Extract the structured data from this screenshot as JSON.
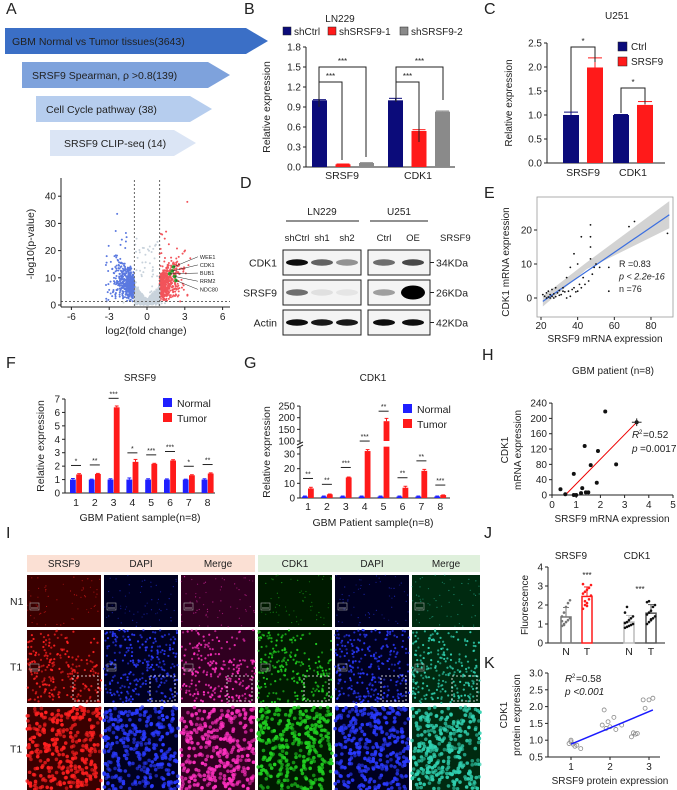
{
  "panel_labels": [
    "A",
    "B",
    "C",
    "D",
    "E",
    "F",
    "G",
    "H",
    "I",
    "J",
    "K"
  ],
  "chart_data": [
    {
      "panel": "A",
      "type": "funnel",
      "steps": [
        {
          "label": "GBM Normal vs Tumor tissues(3643)",
          "color": "#3b6fc6"
        },
        {
          "label": "SRSF9 Spearman, ρ >0.8(139)",
          "color": "#7ea2dc"
        },
        {
          "label": "Cell Cycle pathway (38)",
          "color": "#b6cdee"
        },
        {
          "label": "SRSF9 CLIP-seq (14)",
          "color": "#dbe5f5"
        }
      ]
    },
    {
      "panel": "A-volcano",
      "type": "scatter",
      "xlabel": "log2(fold change)",
      "ylabel": "-log10(p-value)",
      "xlim": [
        -7,
        7
      ],
      "ylim": [
        0,
        45
      ],
      "xticks": [
        "-6",
        "-3",
        "0",
        "3",
        "6"
      ],
      "yticks": [
        "0",
        "10",
        "20",
        "30",
        "40"
      ],
      "thresholds": {
        "log2fc": 1,
        "neglog10p": 1.3
      },
      "colors": {
        "down": "#5b79e0",
        "up": "#f2545b",
        "ns": "#c9d3dc",
        "highlight": "#2ca02c"
      },
      "highlighted_genes": [
        {
          "name": "WEE1",
          "x": 2.1,
          "y": 14
        },
        {
          "name": "CDK1",
          "x": 2.0,
          "y": 12.5
        },
        {
          "name": "BUB1",
          "x": 1.8,
          "y": 11.5
        },
        {
          "name": "RRM2",
          "x": 2.2,
          "y": 10.5
        },
        {
          "name": "NDC80",
          "x": 2.3,
          "y": 9
        }
      ]
    },
    {
      "panel": "B",
      "type": "bar",
      "title": "LN229",
      "ylabel": "Relative expression",
      "ylim": [
        0,
        1.8
      ],
      "yticks": [
        "0.0",
        "0.3",
        "0.6",
        "0.9",
        "1.2",
        "1.5",
        "1.8"
      ],
      "categories": [
        "SRSF9",
        "CDK1"
      ],
      "series": [
        {
          "name": "shCtrl",
          "color": "#0b0b7a",
          "values": [
            1.0,
            1.0
          ],
          "errors": [
            0.01,
            0.03
          ]
        },
        {
          "name": "shSRSF9-1",
          "color": "#ff1a1a",
          "values": [
            0.04,
            0.54
          ],
          "errors": [
            0.005,
            0.02
          ]
        },
        {
          "name": "shSRSF9-2",
          "color": "#8a8a8a",
          "values": [
            0.06,
            0.83
          ],
          "errors": [
            0.005,
            0.01
          ]
        }
      ],
      "significance": [
        "***",
        "***",
        "***",
        "***"
      ]
    },
    {
      "panel": "C",
      "type": "bar",
      "title": "U251",
      "ylabel": "Relative expression",
      "ylim": [
        0,
        2.5
      ],
      "yticks": [
        "0.0",
        "0.5",
        "1.0",
        "1.5",
        "2.0",
        "2.5"
      ],
      "categories": [
        "SRSF9",
        "CDK1"
      ],
      "series": [
        {
          "name": "Ctrl",
          "color": "#0b0b7a",
          "values": [
            1.0,
            1.0
          ],
          "errors": [
            0.06,
            0.01
          ]
        },
        {
          "name": "SRSF9",
          "color": "#ff1a1a",
          "values": [
            1.99,
            1.21
          ],
          "errors": [
            0.2,
            0.07
          ]
        }
      ],
      "significance": [
        "*",
        "*"
      ]
    },
    {
      "panel": "D",
      "type": "western-blot",
      "groups": [
        "LN229",
        "U251"
      ],
      "lanes": [
        "shCtrl",
        "sh1",
        "sh2",
        "Ctrl",
        "OE"
      ],
      "lane_axis_label": "SRSF9",
      "rows": [
        {
          "protein": "CDK1",
          "size": "34KDa",
          "intensity": [
            0.95,
            0.6,
            0.4,
            0.55,
            0.7
          ]
        },
        {
          "protein": "SRSF9",
          "size": "26KDa",
          "intensity": [
            0.55,
            0.08,
            0.06,
            0.35,
            1.0
          ]
        },
        {
          "protein": "Actin",
          "size": "42KDa",
          "intensity": [
            0.95,
            0.9,
            0.9,
            0.95,
            0.95
          ]
        }
      ]
    },
    {
      "panel": "E",
      "type": "scatter",
      "xlabel": "SRSF9 mRNA expression",
      "ylabel": "CDK1 mRNA expression",
      "xlim": [
        18,
        92
      ],
      "ylim": [
        -3,
        27
      ],
      "xticks": [
        "20",
        "40",
        "60",
        "80"
      ],
      "yticks": [
        "0",
        "10",
        "20"
      ],
      "stats": [
        "R =0.83",
        "p < 2.2e-16",
        "n =76"
      ],
      "fit": {
        "x": [
          21,
          90
        ],
        "y": [
          -1,
          24.5
        ]
      },
      "points": [
        [
          21,
          1
        ],
        [
          22,
          0.5
        ],
        [
          23,
          0
        ],
        [
          23,
          1.5
        ],
        [
          24,
          2
        ],
        [
          24,
          0.3
        ],
        [
          25,
          1
        ],
        [
          25,
          0
        ],
        [
          26,
          0.5
        ],
        [
          26,
          2.5
        ],
        [
          27,
          0
        ],
        [
          27,
          1.2
        ],
        [
          28,
          3
        ],
        [
          28,
          0.4
        ],
        [
          29,
          1.5
        ],
        [
          30,
          0.8
        ],
        [
          30,
          2.2
        ],
        [
          31,
          1
        ],
        [
          32,
          3
        ],
        [
          32,
          2
        ],
        [
          33,
          1.8
        ],
        [
          34,
          6
        ],
        [
          34,
          0
        ],
        [
          35,
          2
        ],
        [
          36,
          9
        ],
        [
          36,
          0.5
        ],
        [
          37,
          2.5
        ],
        [
          38,
          13
        ],
        [
          38,
          3
        ],
        [
          39,
          1.8
        ],
        [
          40,
          10
        ],
        [
          40,
          2
        ],
        [
          41,
          4
        ],
        [
          42,
          18
        ],
        [
          42,
          3
        ],
        [
          43,
          6
        ],
        [
          44,
          4
        ],
        [
          46,
          5
        ],
        [
          47,
          21.5
        ],
        [
          47,
          18
        ],
        [
          47,
          15
        ],
        [
          47,
          11.5
        ],
        [
          48,
          7
        ],
        [
          49,
          9
        ],
        [
          50,
          10
        ],
        [
          52,
          9
        ],
        [
          57,
          2
        ],
        [
          57,
          9
        ],
        [
          68,
          21
        ],
        [
          71,
          22.5
        ],
        [
          89,
          19
        ]
      ]
    },
    {
      "panel": "F",
      "type": "bar",
      "title": "SRSF9",
      "xlabel": "GBM Patient sample(n=8)",
      "ylabel": "Relative expression",
      "ylim": [
        0,
        7
      ],
      "yticks": [
        "0",
        "1",
        "2",
        "3",
        "4",
        "5",
        "6",
        "7"
      ],
      "categories": [
        "1",
        "2",
        "3",
        "4",
        "5",
        "6",
        "7",
        "8"
      ],
      "series": [
        {
          "name": "Normal",
          "color": "#1f1fff",
          "values": [
            1,
            1,
            1,
            1,
            1,
            1,
            1,
            1
          ],
          "errors": [
            0.08,
            0.03,
            0.06,
            0.12,
            0.06,
            0.05,
            0.03,
            0.06
          ]
        },
        {
          "name": "Tumor",
          "color": "#ff1a1a",
          "values": [
            1.38,
            1.42,
            6.38,
            2.32,
            2.17,
            2.42,
            1.32,
            1.45
          ],
          "errors": [
            0.06,
            0.04,
            0.1,
            0.18,
            0.04,
            0.06,
            0.04,
            0.05
          ]
        }
      ],
      "significance": [
        "*",
        "**",
        "***",
        "*",
        "***",
        "***",
        "*",
        "**"
      ]
    },
    {
      "panel": "G",
      "type": "bar",
      "title": "CDK1",
      "xlabel": "GBM Patient sample(n=8)",
      "ylabel": "Relative expression",
      "axis_break": [
        35,
        100
      ],
      "ylim": [
        0,
        250
      ],
      "yticks": [
        "0",
        "10",
        "20",
        "30",
        "100",
        "150",
        "200",
        "250"
      ],
      "categories": [
        "1",
        "2",
        "3",
        "4",
        "5",
        "6",
        "7",
        "8"
      ],
      "series": [
        {
          "name": "Normal",
          "color": "#1f1fff",
          "values": [
            1,
            1,
            1,
            1,
            1,
            1,
            1,
            1
          ],
          "errors": [
            0.1,
            0.1,
            0.1,
            0.1,
            0.1,
            0.1,
            0.1,
            0.1
          ]
        },
        {
          "name": "Tumor",
          "color": "#ff1a1a",
          "values": [
            6.5,
            2.5,
            14,
            32,
            185,
            7,
            18.5,
            2
          ],
          "errors": [
            0.8,
            0.2,
            0.3,
            1,
            12,
            1,
            1,
            0.1
          ]
        }
      ],
      "significance": [
        "**",
        "**",
        "***",
        "***",
        "**",
        "**",
        "**",
        "***"
      ]
    },
    {
      "panel": "H",
      "type": "scatter",
      "title": "GBM patient (n=8)",
      "xlabel": "SRSF9 mRNA expression",
      "ylabel_lines": [
        "CDK1",
        "mRNA expression"
      ],
      "xlim": [
        0,
        5
      ],
      "ylim": [
        0,
        240
      ],
      "xticks": [
        "0",
        "1",
        "2",
        "3",
        "4",
        "5"
      ],
      "yticks": [
        "0",
        "40",
        "80",
        "120",
        "160",
        "200",
        "240"
      ],
      "stats": {
        "r2": "=0.52",
        "p": "=0.0017"
      },
      "fit": {
        "x": [
          0.55,
          3.5
        ],
        "y": [
          0,
          190
        ]
      },
      "points": [
        [
          0.35,
          15
        ],
        [
          0.55,
          2
        ],
        [
          0.9,
          55
        ],
        [
          0.9,
          0
        ],
        [
          1.0,
          0
        ],
        [
          1.2,
          5
        ],
        [
          1.25,
          18
        ],
        [
          1.35,
          128
        ],
        [
          1.4,
          7
        ],
        [
          1.5,
          7
        ],
        [
          1.6,
          78
        ],
        [
          1.85,
          32
        ],
        [
          1.9,
          115
        ],
        [
          2.2,
          218
        ],
        [
          2.65,
          80
        ],
        [
          3.5,
          190
        ]
      ]
    },
    {
      "panel": "I",
      "type": "image-grid",
      "columns": [
        "SRSF9",
        "DAPI",
        "Merge",
        "CDK1",
        "DAPI",
        "Merge"
      ],
      "rows": [
        "N1",
        "T1",
        "T1"
      ]
    },
    {
      "panel": "J",
      "type": "bar",
      "ylabel": "Fluorescence",
      "ylim": [
        0,
        4
      ],
      "yticks": [
        "0",
        "1",
        "2",
        "3",
        "4"
      ],
      "groups": [
        "SRSF9",
        "CDK1"
      ],
      "categories": [
        "N",
        "T",
        "N",
        "T"
      ],
      "values": [
        1.37,
        2.45,
        1.1,
        1.57
      ],
      "errors": [
        0.5,
        0.5,
        0.35,
        0.45
      ],
      "colors": [
        "#777777",
        "#ff1a1a",
        "#bbbbbb",
        "#555555"
      ],
      "significance": [
        "***",
        "***"
      ],
      "points": [
        [
          0.9,
          1.0,
          1.1,
          1.2,
          1.3,
          1.4,
          1.6,
          1.9,
          2.1,
          2.25,
          1.15,
          0.95
        ],
        [
          1.8,
          2.0,
          2.1,
          2.3,
          2.5,
          2.6,
          2.7,
          2.8,
          2.9,
          3.05,
          3.1,
          2.2,
          1.95
        ],
        [
          0.8,
          0.85,
          0.9,
          0.95,
          1.0,
          1.05,
          1.1,
          1.2,
          1.3,
          1.4,
          1.6,
          1.9
        ],
        [
          1.0,
          1.1,
          1.2,
          1.3,
          1.4,
          1.5,
          1.6,
          1.7,
          1.9,
          2.0,
          2.15,
          2.2,
          1.25
        ]
      ]
    },
    {
      "panel": "K",
      "type": "scatter",
      "xlabel": "SRSF9 protein expression",
      "ylabel_lines": [
        "CDK1",
        "protein expression"
      ],
      "xlim": [
        0.7,
        3.3
      ],
      "ylim": [
        0.5,
        3.0
      ],
      "xticks": [
        "1",
        "2",
        "3"
      ],
      "yticks": [
        "0.5",
        "1.0",
        "1.5",
        "2.0",
        "2.5",
        "3.0"
      ],
      "stats": {
        "r2": "=0.58",
        "p": "p <0.001"
      },
      "fit": {
        "x": [
          1.0,
          3.1
        ],
        "y": [
          0.88,
          1.9
        ]
      },
      "points": [
        [
          0.95,
          0.9
        ],
        [
          1.0,
          0.95
        ],
        [
          1.0,
          1.0
        ],
        [
          1.05,
          0.88
        ],
        [
          1.1,
          0.82
        ],
        [
          1.15,
          0.85
        ],
        [
          1.25,
          0.75
        ],
        [
          1.8,
          1.45
        ],
        [
          1.85,
          1.9
        ],
        [
          1.9,
          1.35
        ],
        [
          1.95,
          1.55
        ],
        [
          2.0,
          1.4
        ],
        [
          2.1,
          1.68
        ],
        [
          2.15,
          1.32
        ],
        [
          2.3,
          1.45
        ],
        [
          2.55,
          1.1
        ],
        [
          2.6,
          1.22
        ],
        [
          2.65,
          1.18
        ],
        [
          2.7,
          1.2
        ],
        [
          2.85,
          2.2
        ],
        [
          2.9,
          1.95
        ],
        [
          3.0,
          2.2
        ],
        [
          3.1,
          2.25
        ]
      ]
    }
  ]
}
